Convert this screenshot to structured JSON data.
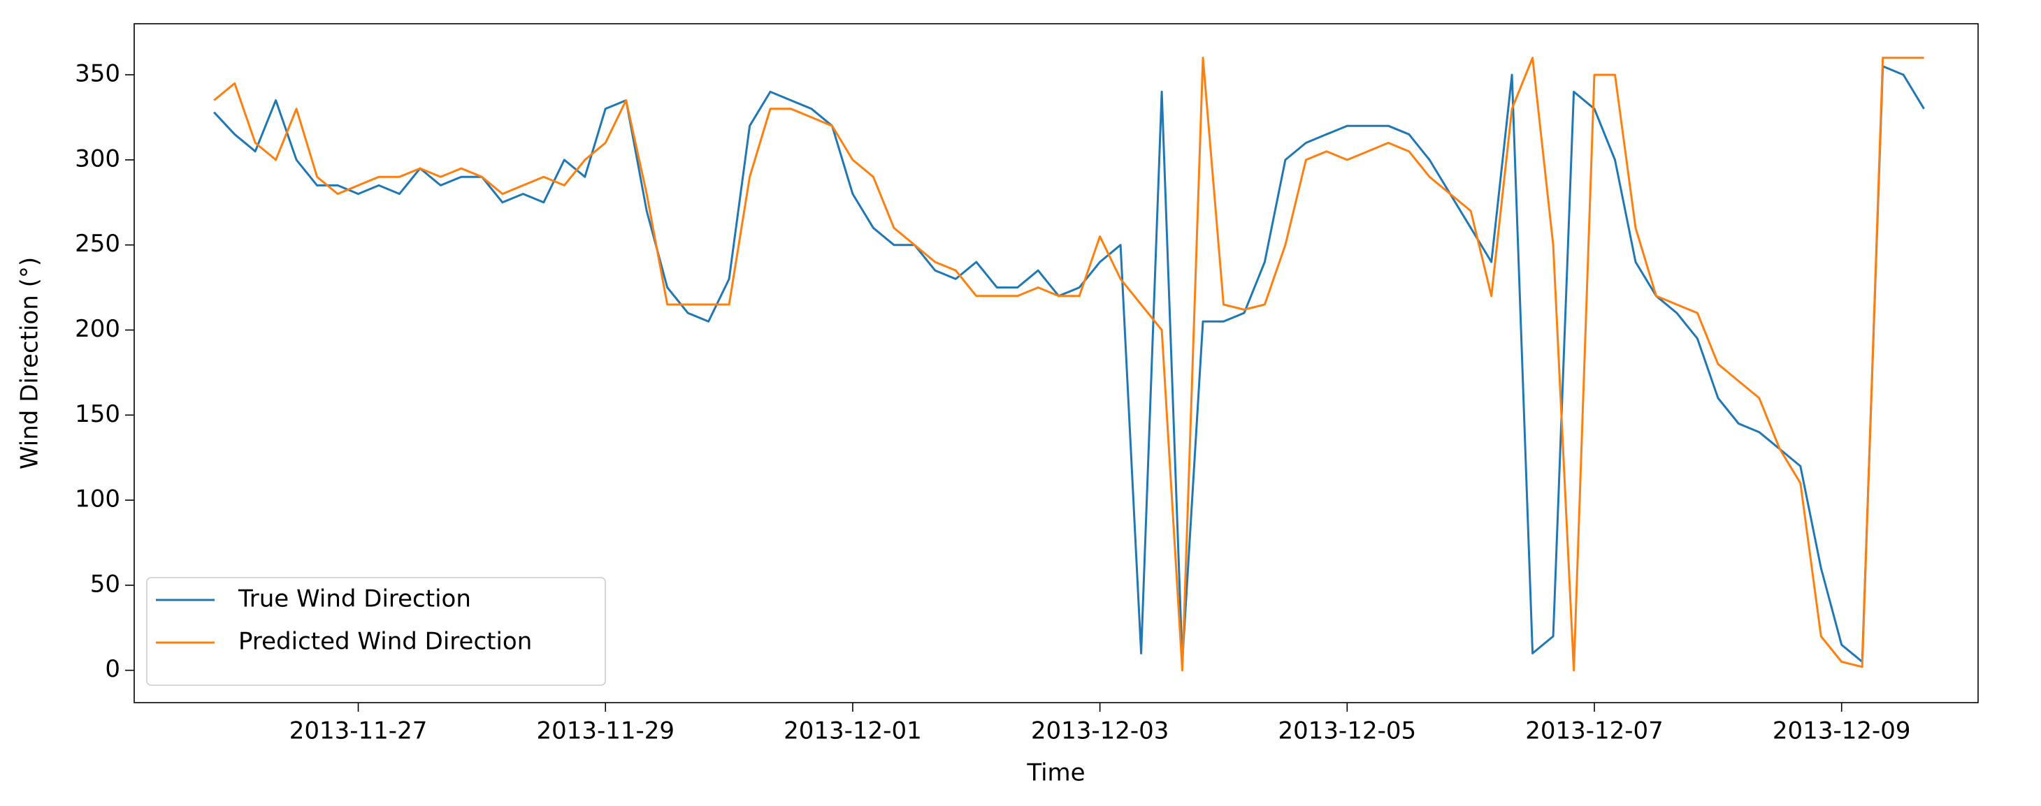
{
  "chart_data": {
    "type": "line",
    "x_label": "Time",
    "y_label": "Wind Direction (°)",
    "x": [
      "2013-11-25T20:00",
      "2013-11-26T00:00",
      "2013-11-26T04:00",
      "2013-11-26T08:00",
      "2013-11-26T12:00",
      "2013-11-26T16:00",
      "2013-11-26T20:00",
      "2013-11-27T00:00",
      "2013-11-27T04:00",
      "2013-11-27T08:00",
      "2013-11-27T12:00",
      "2013-11-27T16:00",
      "2013-11-27T20:00",
      "2013-11-28T00:00",
      "2013-11-28T04:00",
      "2013-11-28T08:00",
      "2013-11-28T12:00",
      "2013-11-28T16:00",
      "2013-11-28T20:00",
      "2013-11-29T00:00",
      "2013-11-29T04:00",
      "2013-11-29T08:00",
      "2013-11-29T12:00",
      "2013-11-29T16:00",
      "2013-11-29T20:00",
      "2013-11-30T00:00",
      "2013-11-30T04:00",
      "2013-11-30T08:00",
      "2013-11-30T12:00",
      "2013-11-30T16:00",
      "2013-11-30T20:00",
      "2013-12-01T00:00",
      "2013-12-01T04:00",
      "2013-12-01T08:00",
      "2013-12-01T12:00",
      "2013-12-01T16:00",
      "2013-12-01T20:00",
      "2013-12-02T00:00",
      "2013-12-02T04:00",
      "2013-12-02T08:00",
      "2013-12-02T12:00",
      "2013-12-02T16:00",
      "2013-12-02T20:00",
      "2013-12-03T00:00",
      "2013-12-03T04:00",
      "2013-12-03T08:00",
      "2013-12-03T12:00",
      "2013-12-03T16:00",
      "2013-12-03T20:00",
      "2013-12-04T00:00",
      "2013-12-04T04:00",
      "2013-12-04T08:00",
      "2013-12-04T12:00",
      "2013-12-04T16:00",
      "2013-12-04T20:00",
      "2013-12-05T00:00",
      "2013-12-05T04:00",
      "2013-12-05T08:00",
      "2013-12-05T12:00",
      "2013-12-05T16:00",
      "2013-12-05T20:00",
      "2013-12-06T00:00",
      "2013-12-06T04:00",
      "2013-12-06T08:00",
      "2013-12-06T12:00",
      "2013-12-06T16:00",
      "2013-12-06T20:00",
      "2013-12-07T00:00",
      "2013-12-07T04:00",
      "2013-12-07T08:00",
      "2013-12-07T12:00",
      "2013-12-07T16:00",
      "2013-12-07T20:00",
      "2013-12-08T00:00",
      "2013-12-08T04:00",
      "2013-12-08T08:00",
      "2013-12-08T12:00",
      "2013-12-08T16:00",
      "2013-12-08T20:00",
      "2013-12-09T00:00",
      "2013-12-09T04:00",
      "2013-12-09T08:00",
      "2013-12-09T12:00",
      "2013-12-09T16:00"
    ],
    "series": [
      {
        "name": "True Wind Direction",
        "color": "#1f77b4",
        "values": [
          328,
          315,
          305,
          335,
          300,
          285,
          285,
          280,
          285,
          280,
          295,
          285,
          290,
          290,
          275,
          280,
          275,
          300,
          290,
          330,
          335,
          270,
          225,
          210,
          205,
          230,
          320,
          340,
          335,
          330,
          320,
          280,
          260,
          250,
          250,
          235,
          230,
          240,
          225,
          225,
          235,
          220,
          225,
          240,
          250,
          10,
          340,
          5,
          205,
          205,
          210,
          240,
          300,
          310,
          315,
          320,
          320,
          320,
          315,
          300,
          280,
          260,
          240,
          350,
          10,
          20,
          340,
          330,
          300,
          240,
          220,
          210,
          195,
          160,
          145,
          140,
          130,
          120,
          60,
          15,
          5,
          355,
          350,
          330
        ]
      },
      {
        "name": "Predicted Wind Direction",
        "color": "#ff7f0e",
        "values": [
          335,
          345,
          310,
          300,
          330,
          290,
          280,
          285,
          290,
          290,
          295,
          290,
          295,
          290,
          280,
          285,
          290,
          285,
          300,
          310,
          335,
          280,
          215,
          215,
          215,
          215,
          290,
          330,
          330,
          325,
          320,
          300,
          290,
          260,
          250,
          240,
          235,
          220,
          220,
          220,
          225,
          220,
          220,
          255,
          230,
          215,
          200,
          0,
          360,
          215,
          212,
          215,
          250,
          300,
          305,
          300,
          305,
          310,
          305,
          290,
          280,
          270,
          220,
          330,
          360,
          250,
          0,
          350,
          350,
          260,
          220,
          215,
          210,
          180,
          170,
          160,
          130,
          110,
          20,
          5,
          2,
          360,
          360,
          360
        ]
      }
    ],
    "xlim": [
      "2013-11-25T04:30",
      "2013-12-10T02:30"
    ],
    "xticks": [
      "2013-11-27",
      "2013-11-29",
      "2013-12-01",
      "2013-12-03",
      "2013-12-05",
      "2013-12-07",
      "2013-12-09"
    ],
    "ylim": [
      -19,
      380
    ],
    "yticks": [
      0,
      50,
      100,
      150,
      200,
      250,
      300,
      350
    ],
    "legend": "lower left"
  }
}
